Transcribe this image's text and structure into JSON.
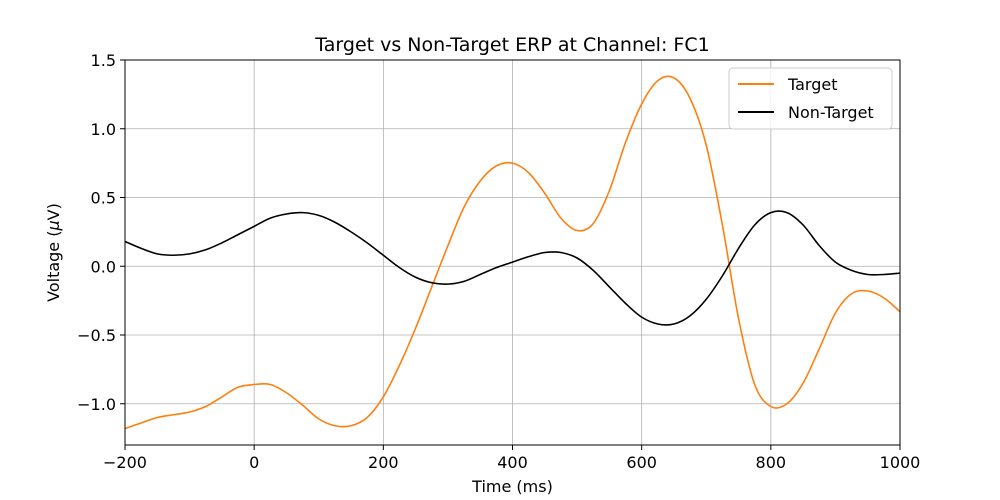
{
  "chart_data": {
    "type": "line",
    "title": "Target vs Non-Target ERP at Channel: FC1",
    "xlabel": "Time (ms)",
    "ylabel_prefix": "Voltage (",
    "ylabel_mu": "μ",
    "ylabel_suffix": "V)",
    "xlim": [
      -200,
      1000
    ],
    "ylim": [
      -1.3,
      1.5
    ],
    "xticks": [
      -200,
      0,
      200,
      400,
      600,
      800,
      1000
    ],
    "xtick_labels": [
      "−200",
      "0",
      "200",
      "400",
      "600",
      "800",
      "1000"
    ],
    "yticks": [
      -1.0,
      -0.5,
      0.0,
      0.5,
      1.0,
      1.5
    ],
    "ytick_labels": [
      "−1.0",
      "−0.5",
      "0.0",
      "0.5",
      "1.0",
      "1.5"
    ],
    "grid": true,
    "legend_position": "top-right",
    "series": [
      {
        "name": "Target",
        "color": "#ff7f0e",
        "x": [
          -200,
          -175,
          -150,
          -125,
          -100,
          -75,
          -50,
          -25,
          0,
          25,
          50,
          75,
          100,
          125,
          150,
          175,
          200,
          225,
          250,
          275,
          300,
          325,
          350,
          375,
          400,
          425,
          450,
          475,
          500,
          525,
          550,
          575,
          600,
          625,
          650,
          675,
          700,
          725,
          750,
          775,
          800,
          825,
          850,
          875,
          900,
          925,
          950,
          975,
          1000
        ],
        "y": [
          -1.18,
          -1.14,
          -1.1,
          -1.08,
          -1.06,
          -1.02,
          -0.95,
          -0.88,
          -0.86,
          -0.86,
          -0.92,
          -1.01,
          -1.11,
          -1.16,
          -1.16,
          -1.1,
          -0.95,
          -0.72,
          -0.45,
          -0.15,
          0.15,
          0.43,
          0.62,
          0.73,
          0.75,
          0.68,
          0.53,
          0.35,
          0.26,
          0.31,
          0.55,
          0.9,
          1.18,
          1.35,
          1.37,
          1.22,
          0.88,
          0.3,
          -0.38,
          -0.86,
          -1.02,
          -1.0,
          -0.85,
          -0.6,
          -0.34,
          -0.2,
          -0.18,
          -0.23,
          -0.33
        ]
      },
      {
        "name": "Non-Target",
        "color": "#000000",
        "x": [
          -200,
          -175,
          -150,
          -125,
          -100,
          -75,
          -50,
          -25,
          0,
          25,
          50,
          75,
          100,
          125,
          150,
          175,
          200,
          225,
          250,
          275,
          300,
          325,
          350,
          375,
          400,
          425,
          450,
          475,
          500,
          525,
          550,
          575,
          600,
          625,
          650,
          675,
          700,
          725,
          750,
          775,
          800,
          825,
          850,
          875,
          900,
          925,
          950,
          975,
          1000
        ],
        "y": [
          0.18,
          0.13,
          0.09,
          0.08,
          0.09,
          0.12,
          0.17,
          0.23,
          0.29,
          0.35,
          0.38,
          0.39,
          0.37,
          0.32,
          0.25,
          0.17,
          0.08,
          -0.01,
          -0.08,
          -0.12,
          -0.13,
          -0.11,
          -0.06,
          -0.01,
          0.03,
          0.07,
          0.1,
          0.1,
          0.06,
          -0.03,
          -0.15,
          -0.27,
          -0.37,
          -0.42,
          -0.42,
          -0.36,
          -0.24,
          -0.07,
          0.13,
          0.3,
          0.39,
          0.39,
          0.3,
          0.15,
          0.03,
          -0.03,
          -0.06,
          -0.06,
          -0.05
        ]
      }
    ]
  }
}
